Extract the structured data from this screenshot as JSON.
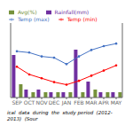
{
  "chart_data": {
    "type": "bar",
    "title": "ical  data  during  the  study period  (2012-2013)  (Sour",
    "categories": [
      "SEP",
      "OCT",
      "NOV",
      "DEC",
      "JAN",
      "FEB",
      "MAR",
      "APR",
      "MAY"
    ],
    "series": [
      {
        "name": "Rainfall(mm)",
        "type": "bar",
        "color": "#7030a0",
        "values": [
          16,
          3,
          3,
          2,
          2,
          18,
          6,
          2,
          2
        ]
      },
      {
        "name": "Avg(%)",
        "type": "bar",
        "color": "#76923c",
        "values": [
          5,
          2,
          2,
          2,
          2,
          2,
          3,
          2,
          2
        ]
      },
      {
        "name": "Temp (max)",
        "type": "line",
        "color": "#4472c4",
        "marker": "circle",
        "line_style": "solid",
        "axis": "y2",
        "values": [
          28,
          27,
          24,
          23,
          18,
          24,
          29,
          32,
          34
        ]
      },
      {
        "name": "Temp (min)",
        "type": "line",
        "color": "#ff0000",
        "marker": "circle",
        "line_style": "solid",
        "axis": "y2",
        "values": [
          16,
          10,
          7,
          4,
          2,
          5,
          9,
          13,
          17
        ]
      }
    ],
    "ylim": [
      0,
      28
    ],
    "y2lim": [
      -8,
      50
    ],
    "tick_labels": "x",
    "grid": false,
    "legend": "upper left"
  }
}
